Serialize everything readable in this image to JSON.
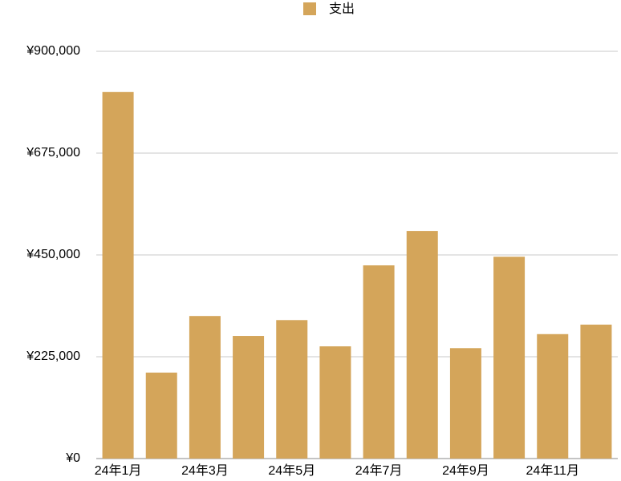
{
  "chart_data": {
    "type": "bar",
    "categories": [
      "24年1月",
      null,
      "24年3月",
      null,
      "24年5月",
      null,
      "24年7月",
      null,
      "24年9月",
      null,
      "24年11月",
      null
    ],
    "series": [
      {
        "name": "支出",
        "color": "#d4a55a",
        "values": [
          810000,
          190000,
          315000,
          271000,
          306000,
          248000,
          427000,
          503000,
          244000,
          446000,
          275000,
          296000
        ]
      }
    ],
    "ylim": [
      0,
      900000
    ],
    "yticks": [
      {
        "value": 0,
        "label": "¥0"
      },
      {
        "value": 225000,
        "label": "¥225,000"
      },
      {
        "value": 450000,
        "label": "¥450,000"
      },
      {
        "value": 675000,
        "label": "¥675,000"
      },
      {
        "value": 900000,
        "label": "¥900,000"
      }
    ],
    "grid": true,
    "legend": "top"
  }
}
